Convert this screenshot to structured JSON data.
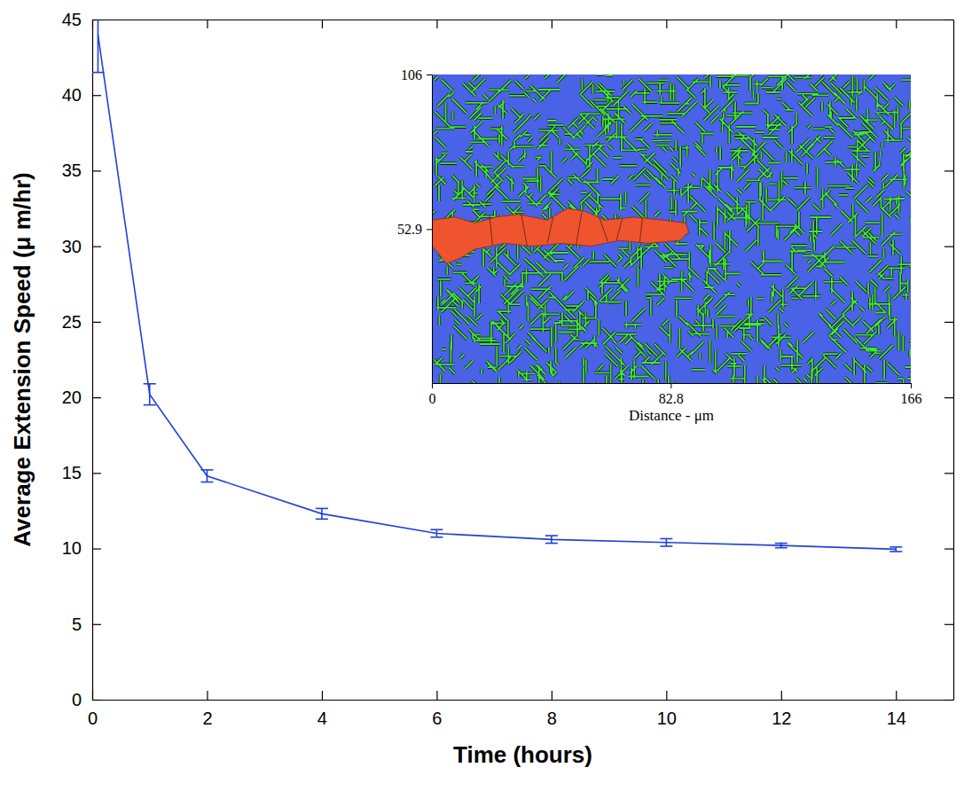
{
  "chart_data": [
    {
      "type": "line",
      "xlabel": "Time (hours)",
      "ylabel": "Average Extension Speed (μ m/hr)",
      "x": [
        0.1,
        1,
        2,
        4,
        6,
        8,
        10,
        12,
        14
      ],
      "values": [
        44,
        20.2,
        14.8,
        12.3,
        11.0,
        10.6,
        10.4,
        10.2,
        9.95
      ],
      "errors": [
        2.5,
        0.7,
        0.4,
        0.35,
        0.25,
        0.25,
        0.25,
        0.15,
        0.15
      ],
      "color": "#2040d8",
      "xlim": [
        0,
        15
      ],
      "xticks": [
        0,
        2,
        4,
        6,
        8,
        10,
        12,
        14
      ],
      "ylim": [
        0,
        45
      ],
      "yticks": [
        0,
        5,
        10,
        15,
        20,
        25,
        30,
        35,
        40,
        45
      ]
    },
    {
      "type": "image",
      "xlabel": "Distance - μm",
      "xlim": [
        0,
        166
      ],
      "ylim": [
        0,
        106
      ],
      "xticks": [
        0,
        82.8,
        166
      ],
      "yticks": [
        52.9,
        106
      ]
    }
  ]
}
